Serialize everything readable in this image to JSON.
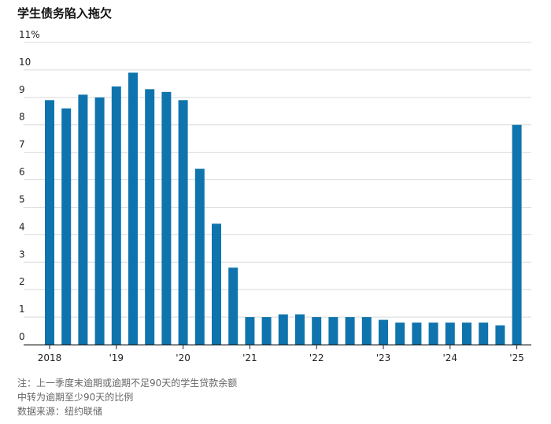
{
  "title": "学生债务陷入拖欠",
  "notes": [
    "注：上一季度末逾期或逾期不足90天的学生贷款余额",
    "中转为逾期至少90天的比例",
    "数据来源：纽约联储"
  ],
  "colors": {
    "bar": "#0f74ad",
    "grid": "#d9d9d9",
    "axis": "#222222"
  },
  "chart_data": {
    "type": "bar",
    "title": "学生债务陷入拖欠",
    "xlabel": "",
    "ylabel": "",
    "ylim": [
      0,
      11
    ],
    "yticks": [
      0,
      1,
      2,
      3,
      4,
      5,
      6,
      7,
      8,
      9,
      10,
      11
    ],
    "ytick_labels": [
      "0",
      "1",
      "2",
      "3",
      "4",
      "5",
      "6",
      "7",
      "8",
      "9",
      "10",
      "11%"
    ],
    "x_labels": [
      {
        "label": "2018",
        "index": 0
      },
      {
        "label": "'19",
        "index": 4
      },
      {
        "label": "'20",
        "index": 8
      },
      {
        "label": "'21",
        "index": 12
      },
      {
        "label": "'22",
        "index": 16
      },
      {
        "label": "'23",
        "index": 20
      },
      {
        "label": "'24",
        "index": 24
      },
      {
        "label": "'25",
        "index": 28
      }
    ],
    "categories": [
      "2018 Q1",
      "2018 Q2",
      "2018 Q3",
      "2018 Q4",
      "2019 Q1",
      "2019 Q2",
      "2019 Q3",
      "2019 Q4",
      "2020 Q1",
      "2020 Q2",
      "2020 Q3",
      "2020 Q4",
      "2021 Q1",
      "2021 Q2",
      "2021 Q3",
      "2021 Q4",
      "2022 Q1",
      "2022 Q2",
      "2022 Q3",
      "2022 Q4",
      "2023 Q1",
      "2023 Q2",
      "2023 Q3",
      "2023 Q4",
      "2024 Q1",
      "2024 Q2",
      "2024 Q3",
      "2024 Q4",
      "2025 Q1"
    ],
    "values": [
      8.9,
      8.6,
      9.1,
      9.0,
      9.4,
      9.9,
      9.3,
      9.2,
      8.9,
      6.4,
      4.4,
      2.8,
      1.0,
      1.0,
      1.1,
      1.1,
      1.0,
      1.0,
      1.0,
      1.0,
      0.9,
      0.8,
      0.8,
      0.8,
      0.8,
      0.8,
      0.8,
      0.7,
      8.0
    ],
    "grid": true,
    "legend": "none"
  }
}
